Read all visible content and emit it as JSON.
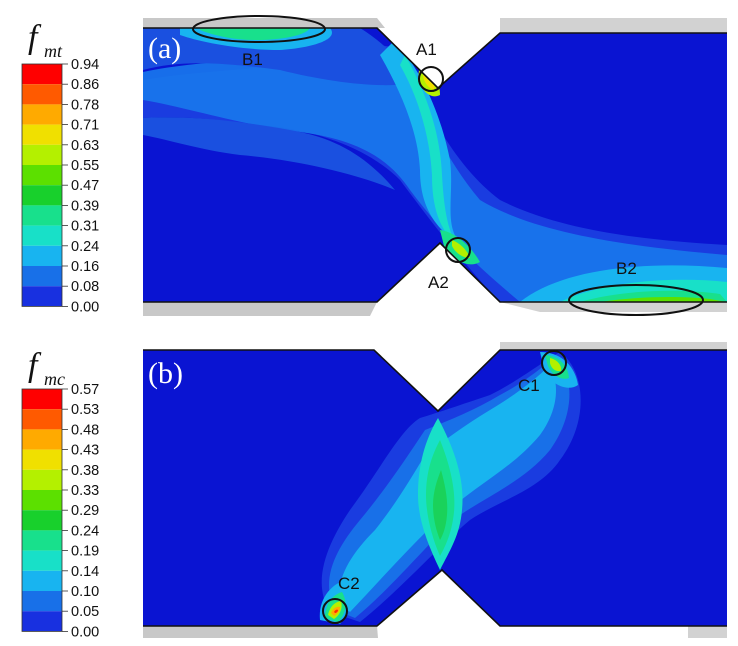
{
  "panels": [
    {
      "label": "(a)",
      "variable": "f",
      "subscript": "mt",
      "legend_ticks": [
        "0.94",
        "0.86",
        "0.78",
        "0.71",
        "0.63",
        "0.55",
        "0.47",
        "0.39",
        "0.31",
        "0.24",
        "0.16",
        "0.08",
        "0.00"
      ],
      "callouts": [
        "B1",
        "A1",
        "A2",
        "B2"
      ]
    },
    {
      "label": "(b)",
      "variable": "f",
      "subscript": "mc",
      "legend_ticks": [
        "0.57",
        "0.53",
        "0.48",
        "0.43",
        "0.38",
        "0.33",
        "0.29",
        "0.24",
        "0.19",
        "0.14",
        "0.10",
        "0.05",
        "0.00"
      ],
      "callouts": [
        "C1",
        "C2"
      ]
    }
  ],
  "colors": {
    "legend_bands_top_to_bottom": [
      "#ff0000",
      "#ff5a00",
      "#ffaa00",
      "#f0e000",
      "#b4f000",
      "#5ce000",
      "#18d02c",
      "#18e08c",
      "#18e0c8",
      "#18b4f0",
      "#1870e8",
      "#1830e0"
    ],
    "background": "#0a14d2",
    "gray_bars": "#c8c8c8"
  }
}
